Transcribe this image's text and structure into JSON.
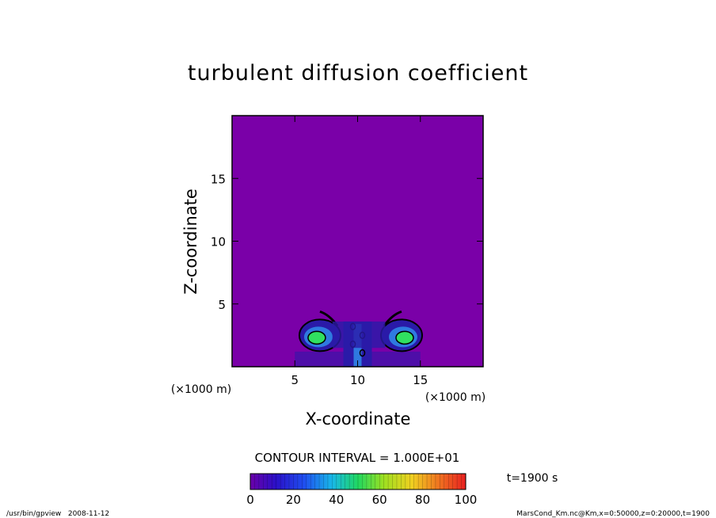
{
  "chart_data": {
    "type": "heatmap",
    "title": "turbulent diffusion coefficient",
    "xlabel": "X-coordinate",
    "ylabel": "Z-coordinate",
    "x_unit": "(×1000 m)",
    "y_unit": "(×1000 m)",
    "xlim": [
      0,
      20
    ],
    "ylim": [
      0,
      20
    ],
    "x_ticks": [
      "5",
      "10",
      "15"
    ],
    "y_ticks": [
      "5",
      "10",
      "15"
    ],
    "background_value": 0,
    "features": [
      {
        "name": "left-vortex",
        "x": 7,
        "z": 2.5,
        "max_value": 55
      },
      {
        "name": "right-vortex",
        "x": 13.5,
        "z": 2.5,
        "max_value": 55
      },
      {
        "name": "central-plume",
        "x": 10,
        "z": 2,
        "max_value": 30
      }
    ],
    "colorbar": {
      "min": 0,
      "max": 100,
      "ticks": [
        "0",
        "20",
        "40",
        "60",
        "80",
        "100"
      ],
      "contour_interval_text": "CONTOUR INTERVAL = 1.000E+01"
    },
    "time_label": "t=1900 s",
    "footer_left": "/usr/bin/gpview   2008-11-12",
    "footer_right": "MarsCond_Km.nc@Km,x=0:50000,z=0:20000,t=1900",
    "colors": {
      "background_field": "#7a00a8",
      "low": "#2a1aa8",
      "mid": "#2f7ae0",
      "high": "#30e060"
    }
  }
}
